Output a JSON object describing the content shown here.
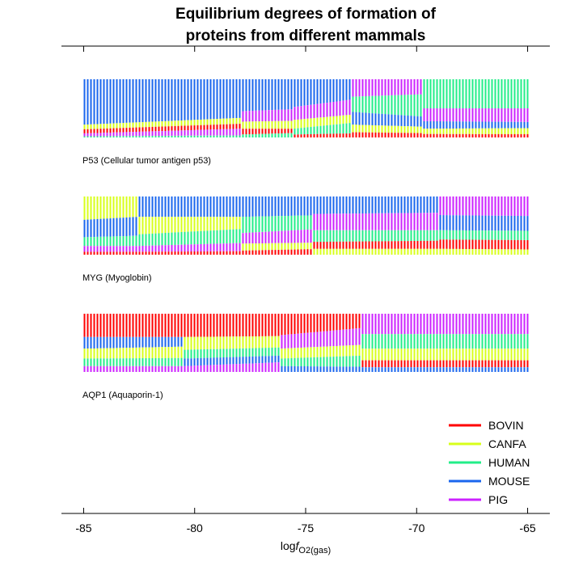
{
  "chart_data": {
    "type": "bar",
    "title": [
      "Equilibrium degrees of formation of",
      "proteins from different mammals"
    ],
    "xlabel": {
      "prefix": "log",
      "var": "f",
      "sub": "O2(gas)"
    },
    "xlim": [
      -86,
      -64
    ],
    "xticks": [
      -85,
      -80,
      -75,
      -70,
      -65
    ],
    "xtick_labels": [
      "-85",
      "-80",
      "-75",
      "-70",
      "-65"
    ],
    "legend_position": "bottom-right",
    "legend": [
      {
        "name": "BOVIN",
        "color": "#ff0000"
      },
      {
        "name": "CANFA",
        "color": "#d8ff1a"
      },
      {
        "name": "HUMAN",
        "color": "#22ee88"
      },
      {
        "name": "MOUSE",
        "color": "#1a66ee"
      },
      {
        "name": "PIG",
        "color": "#cc22ff"
      }
    ],
    "panels": [
      {
        "label": "P53 (Cellular tumor antigen p53)",
        "ranks": [
          {
            "x": -85,
            "order": [
              "MOUSE",
              "CANFA",
              "BOVIN",
              "PIG",
              "HUMAN"
            ],
            "fracs": [
              0.78,
              0.08,
              0.07,
              0.05,
              0.02
            ]
          },
          {
            "x": -78,
            "order": [
              "MOUSE",
              "PIG",
              "CANFA",
              "BOVIN",
              "HUMAN"
            ],
            "fracs": [
              0.55,
              0.18,
              0.12,
              0.1,
              0.05
            ]
          },
          {
            "x": -75.6,
            "order": [
              "MOUSE",
              "PIG",
              "CANFA",
              "HUMAN",
              "BOVIN"
            ],
            "fracs": [
              0.48,
              0.22,
              0.15,
              0.1,
              0.05
            ]
          },
          {
            "x": -73,
            "order": [
              "PIG",
              "HUMAN",
              "MOUSE",
              "CANFA",
              "BOVIN"
            ],
            "fracs": [
              0.3,
              0.26,
              0.22,
              0.13,
              0.09
            ]
          },
          {
            "x": -69.8,
            "order": [
              "HUMAN",
              "PIG",
              "MOUSE",
              "CANFA",
              "BOVIN"
            ],
            "fracs": [
              0.5,
              0.22,
              0.13,
              0.09,
              0.06
            ]
          },
          {
            "x": -65,
            "order": [
              "HUMAN",
              "PIG",
              "CANFA",
              "MOUSE",
              "BOVIN"
            ],
            "fracs": [
              0.5,
              0.25,
              0.12,
              0.08,
              0.05
            ]
          }
        ]
      },
      {
        "label": "MYG (Myoglobin)",
        "ranks": [
          {
            "x": -85,
            "order": [
              "CANFA",
              "MOUSE",
              "HUMAN",
              "PIG",
              "BOVIN"
            ],
            "fracs": [
              0.4,
              0.3,
              0.15,
              0.1,
              0.05
            ]
          },
          {
            "x": -82.6,
            "order": [
              "MOUSE",
              "CANFA",
              "HUMAN",
              "PIG",
              "BOVIN"
            ],
            "fracs": [
              0.35,
              0.3,
              0.2,
              0.1,
              0.05
            ]
          },
          {
            "x": -78,
            "order": [
              "MOUSE",
              "HUMAN",
              "PIG",
              "CANFA",
              "BOVIN"
            ],
            "fracs": [
              0.35,
              0.28,
              0.18,
              0.12,
              0.07
            ]
          },
          {
            "x": -74.8,
            "order": [
              "MOUSE",
              "PIG",
              "HUMAN",
              "BOVIN",
              "CANFA"
            ],
            "fracs": [
              0.3,
              0.28,
              0.2,
              0.12,
              0.1
            ]
          },
          {
            "x": -69,
            "order": [
              "PIG",
              "MOUSE",
              "HUMAN",
              "BOVIN",
              "CANFA"
            ],
            "fracs": [
              0.32,
              0.26,
              0.16,
              0.16,
              0.1
            ]
          },
          {
            "x": -65,
            "order": [
              "PIG",
              "MOUSE",
              "HUMAN",
              "BOVIN",
              "CANFA"
            ],
            "fracs": [
              0.35,
              0.25,
              0.16,
              0.16,
              0.08
            ]
          }
        ]
      },
      {
        "label": "AQP1 (Aquaporin-1)",
        "ranks": [
          {
            "x": -85,
            "order": [
              "BOVIN",
              "MOUSE",
              "CANFA",
              "HUMAN",
              "PIG"
            ],
            "fracs": [
              0.4,
              0.2,
              0.17,
              0.13,
              0.1
            ]
          },
          {
            "x": -80.5,
            "order": [
              "BOVIN",
              "CANFA",
              "HUMAN",
              "MOUSE",
              "PIG"
            ],
            "fracs": [
              0.4,
              0.22,
              0.15,
              0.13,
              0.1
            ]
          },
          {
            "x": -76.2,
            "order": [
              "BOVIN",
              "PIG",
              "CANFA",
              "HUMAN",
              "MOUSE"
            ],
            "fracs": [
              0.37,
              0.23,
              0.17,
              0.13,
              0.1
            ]
          },
          {
            "x": -72.5,
            "order": [
              "PIG",
              "HUMAN",
              "CANFA",
              "BOVIN",
              "MOUSE"
            ],
            "fracs": [
              0.35,
              0.25,
              0.2,
              0.12,
              0.08
            ]
          },
          {
            "x": -65,
            "order": [
              "PIG",
              "HUMAN",
              "CANFA",
              "BOVIN",
              "MOUSE"
            ],
            "fracs": [
              0.35,
              0.25,
              0.2,
              0.12,
              0.08
            ]
          }
        ]
      }
    ]
  }
}
